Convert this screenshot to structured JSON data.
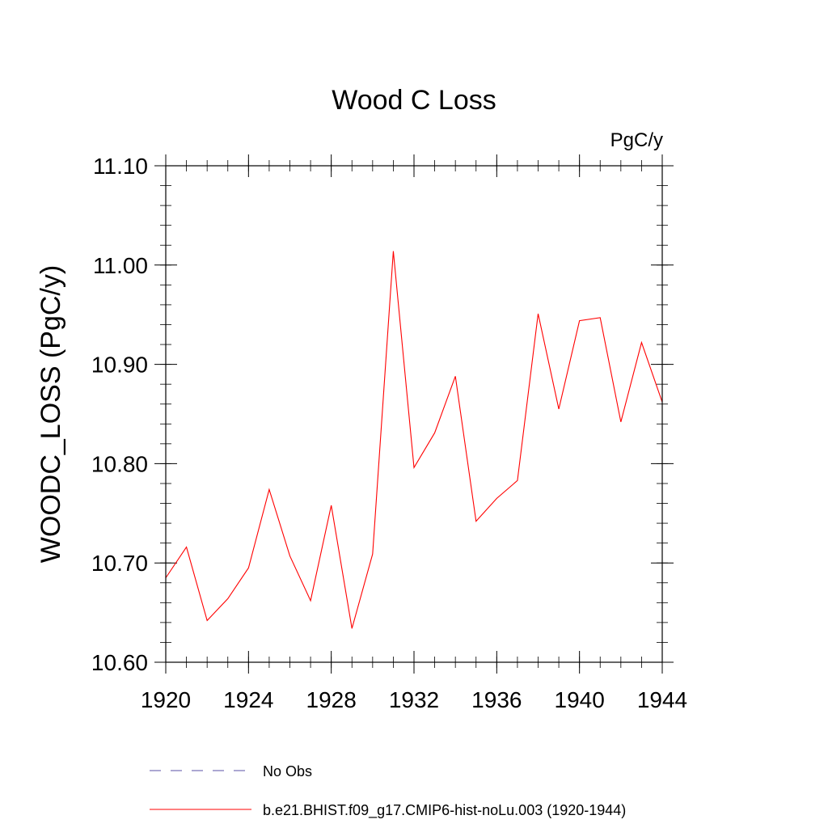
{
  "chart_data": {
    "type": "line",
    "title": "Wood C Loss",
    "units_label": "PgC/y",
    "ylabel": "WOODC_LOSS  (PgC/y)",
    "xlabel": "",
    "xlim": [
      1920,
      1944
    ],
    "ylim": [
      10.6,
      11.1
    ],
    "x_ticks": [
      1920,
      1924,
      1928,
      1932,
      1936,
      1940,
      1944
    ],
    "x_tick_labels": [
      "1920",
      "1924",
      "1928",
      "1932",
      "1936",
      "1940",
      "1944"
    ],
    "y_ticks": [
      10.6,
      10.7,
      10.8,
      10.9,
      11.0,
      11.1
    ],
    "y_tick_labels": [
      "10.60",
      "10.70",
      "10.80",
      "10.90",
      "11.00",
      "11.10"
    ],
    "grid": false,
    "legend_position": "bottom",
    "series": [
      {
        "name": "b.e21.BHIST.f09_g17.CMIP6-hist-noLu.003 (1920-1944)",
        "color": "#ff0000",
        "line_style": "solid",
        "x": [
          1920,
          1921,
          1922,
          1923,
          1924,
          1925,
          1926,
          1927,
          1928,
          1929,
          1930,
          1931,
          1932,
          1933,
          1934,
          1935,
          1936,
          1937,
          1938,
          1939,
          1940,
          1941,
          1942,
          1943,
          1944
        ],
        "values": [
          10.685,
          10.716,
          10.642,
          10.664,
          10.695,
          10.774,
          10.707,
          10.662,
          10.758,
          10.634,
          10.709,
          11.014,
          10.796,
          10.831,
          10.888,
          10.742,
          10.765,
          10.783,
          10.951,
          10.855,
          10.944,
          10.947,
          10.842,
          10.922,
          10.862
        ]
      }
    ],
    "legend": [
      {
        "label": "No Obs",
        "color": "#7a74b8",
        "line_style": "dashed"
      },
      {
        "label": "b.e21.BHIST.f09_g17.CMIP6-hist-noLu.003 (1920-1944)",
        "color": "#ff0000",
        "line_style": "solid"
      }
    ]
  }
}
